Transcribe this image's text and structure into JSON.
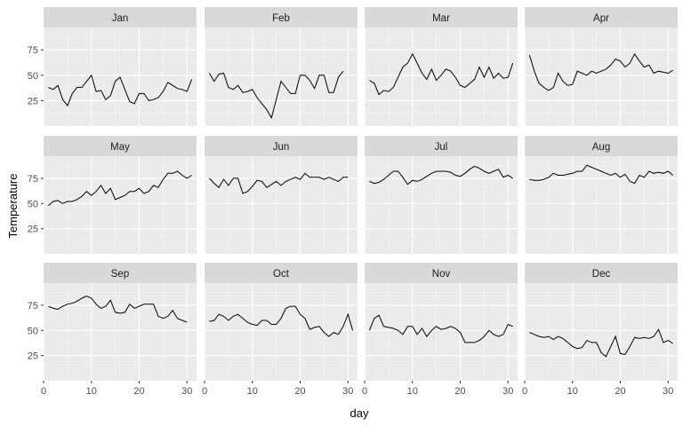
{
  "chart_data": {
    "type": "line",
    "facet": "month",
    "xlabel": "day",
    "ylabel": "Temperature",
    "xlim": [
      0,
      32
    ],
    "ylim": [
      0,
      97
    ],
    "x_ticks": [
      0,
      10,
      20,
      30
    ],
    "y_ticks": [
      25,
      50,
      75
    ],
    "grid": true,
    "panel_background": "#ebebeb",
    "strip_background": "#d9d9d9",
    "line_color": "#000000",
    "panels": [
      {
        "name": "Jan",
        "values": [
          38,
          36,
          40,
          26,
          20,
          32,
          38,
          38,
          44,
          50,
          34,
          35,
          26,
          30,
          44,
          48,
          36,
          24,
          22,
          32,
          32,
          25,
          26,
          28,
          34,
          43,
          40,
          37,
          36,
          34,
          46
        ]
      },
      {
        "name": "Feb",
        "values": [
          52,
          44,
          51,
          52,
          38,
          36,
          40,
          33,
          34,
          36,
          28,
          22,
          16,
          8,
          26,
          44,
          38,
          32,
          32,
          50,
          50,
          45,
          37,
          50,
          50,
          33,
          33,
          48,
          54
        ]
      },
      {
        "name": "Mar",
        "values": [
          45,
          42,
          31,
          35,
          34,
          38,
          48,
          58,
          62,
          71,
          62,
          52,
          46,
          56,
          45,
          50,
          56,
          54,
          48,
          40,
          38,
          42,
          46,
          58,
          48,
          58,
          47,
          52,
          47,
          48,
          62
        ]
      },
      {
        "name": "Apr",
        "values": [
          70,
          54,
          42,
          38,
          35,
          38,
          52,
          44,
          40,
          41,
          54,
          52,
          50,
          54,
          52,
          54,
          56,
          60,
          66,
          64,
          58,
          62,
          71,
          64,
          58,
          60,
          52,
          54,
          53,
          52,
          55
        ]
      },
      {
        "name": "May",
        "values": [
          48,
          52,
          53,
          50,
          52,
          52,
          54,
          57,
          62,
          58,
          62,
          68,
          60,
          65,
          54,
          56,
          58,
          62,
          62,
          65,
          60,
          62,
          68,
          66,
          74,
          80,
          80,
          82,
          78,
          75,
          78
        ]
      },
      {
        "name": "Jun",
        "values": [
          75,
          70,
          66,
          74,
          68,
          75,
          75,
          60,
          62,
          67,
          73,
          72,
          66,
          69,
          72,
          68,
          72,
          74,
          76,
          74,
          80,
          76,
          76,
          76,
          74,
          76,
          74,
          72,
          76,
          76
        ]
      },
      {
        "name": "Jul",
        "values": [
          72,
          70,
          71,
          74,
          78,
          82,
          82,
          76,
          69,
          73,
          72,
          74,
          77,
          80,
          82,
          82,
          82,
          81,
          78,
          77,
          80,
          84,
          87,
          85,
          82,
          80,
          82,
          84,
          76,
          78,
          75
        ]
      },
      {
        "name": "Aug",
        "values": [
          74,
          73,
          73,
          74,
          76,
          80,
          78,
          78,
          79,
          80,
          82,
          82,
          88,
          86,
          84,
          82,
          80,
          78,
          80,
          76,
          79,
          72,
          70,
          78,
          76,
          82,
          80,
          81,
          80,
          82,
          78
        ]
      },
      {
        "name": "Sep",
        "values": [
          74,
          72,
          71,
          74,
          76,
          77,
          79,
          82,
          84,
          82,
          76,
          72,
          74,
          80,
          68,
          67,
          68,
          76,
          72,
          74,
          76,
          76,
          76,
          64,
          62,
          64,
          70,
          62,
          60,
          58
        ]
      },
      {
        "name": "Oct",
        "values": [
          59,
          60,
          66,
          64,
          60,
          64,
          66,
          62,
          58,
          56,
          55,
          60,
          60,
          56,
          56,
          62,
          72,
          74,
          74,
          66,
          62,
          51,
          53,
          54,
          48,
          44,
          48,
          46,
          54,
          66,
          50
        ]
      },
      {
        "name": "Nov",
        "values": [
          50,
          62,
          65,
          54,
          53,
          52,
          50,
          46,
          54,
          54,
          46,
          52,
          44,
          50,
          54,
          51,
          52,
          54,
          52,
          48,
          38,
          38,
          38,
          40,
          44,
          50,
          46,
          44,
          46,
          56,
          54
        ]
      },
      {
        "name": "Dec",
        "values": [
          48,
          46,
          44,
          43,
          44,
          41,
          44,
          42,
          38,
          34,
          32,
          33,
          40,
          38,
          38,
          28,
          24,
          34,
          44,
          27,
          26,
          34,
          43,
          42,
          43,
          42,
          44,
          51,
          38,
          40,
          37
        ]
      }
    ]
  }
}
